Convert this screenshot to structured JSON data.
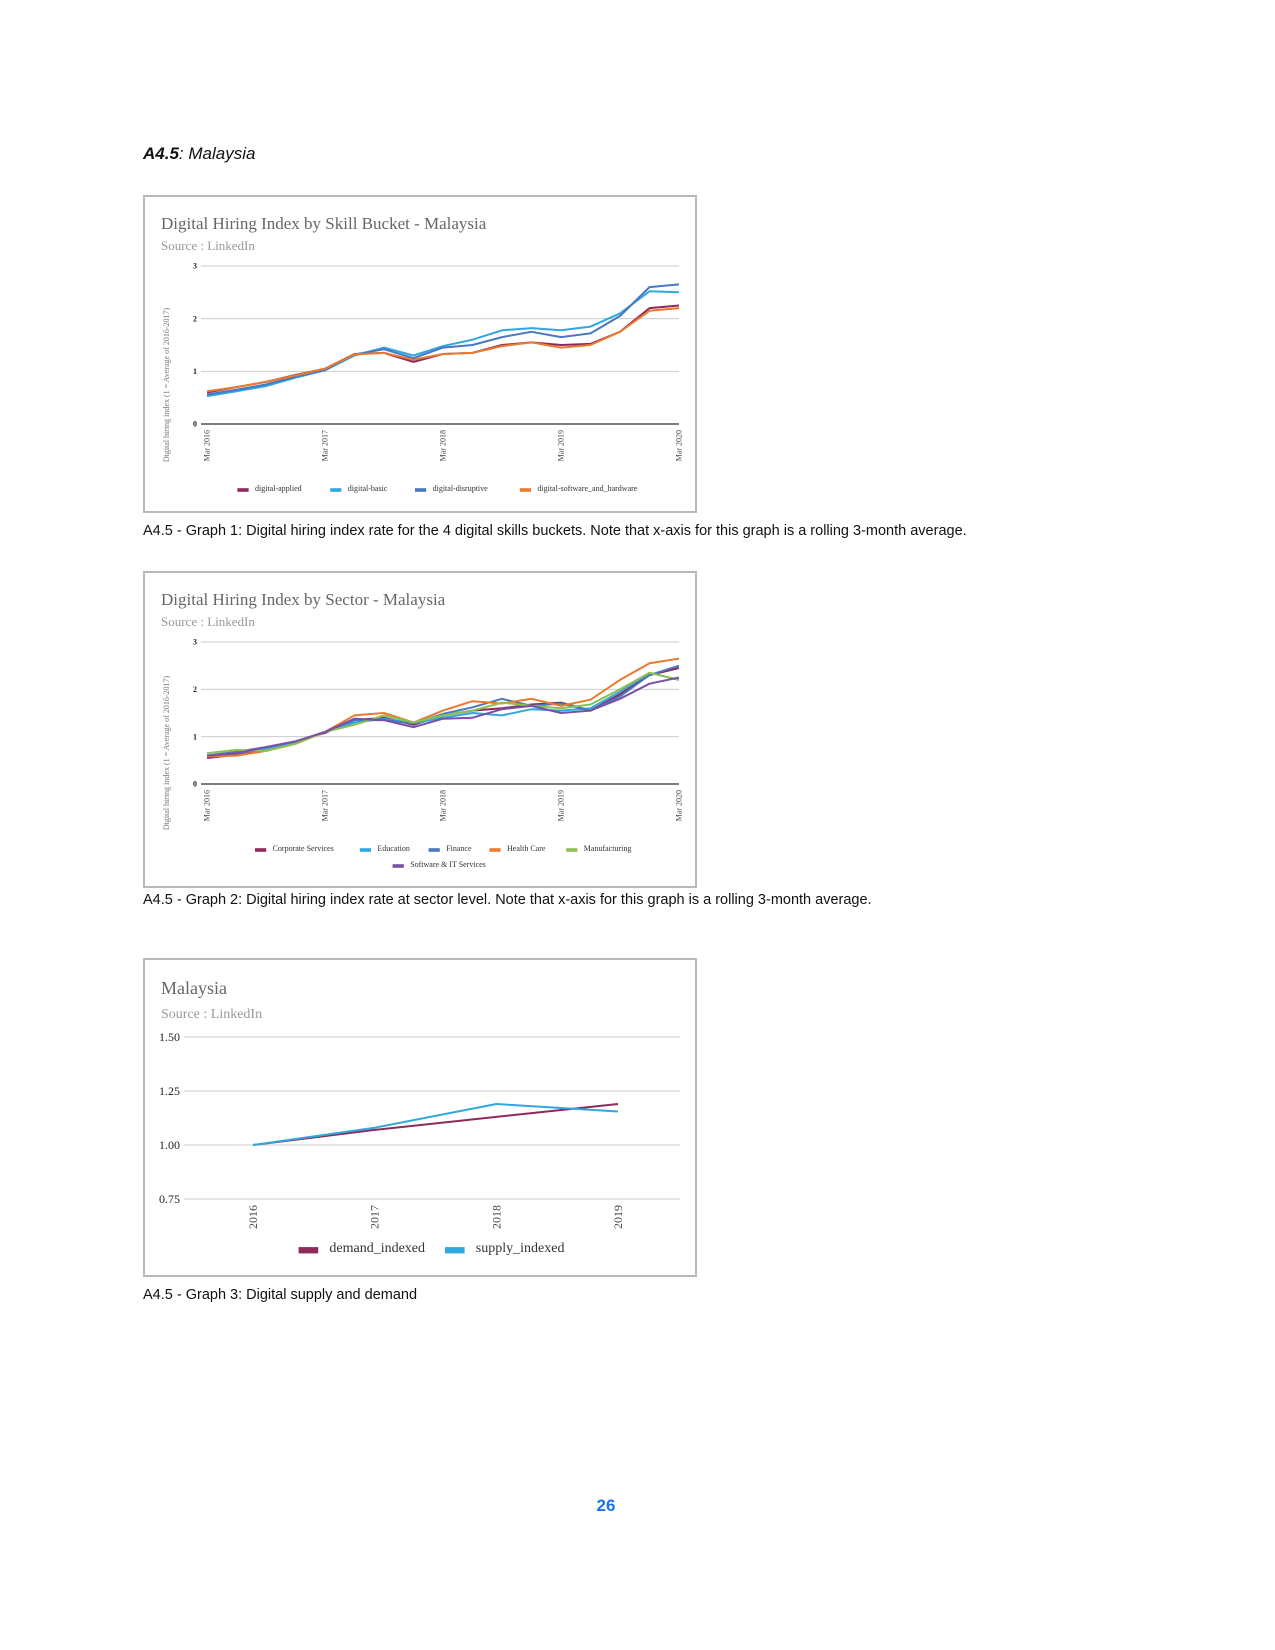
{
  "section": {
    "label": "A4.5",
    "title": ": Malaysia"
  },
  "page_number": "26",
  "captions": [
    "A4.5 - Graph 1: Digital hiring index rate for the 4 digital skills buckets. Note that x-axis for this graph is a rolling 3-month average.",
    "A4.5 - Graph 2: Digital hiring index rate at sector level. Note that x-axis for this graph is a rolling 3-month average.",
    "A4.5 - Graph 3: Digital supply and demand"
  ],
  "chart_data": [
    {
      "type": "line",
      "title": "Digital Hiring Index by Skill Bucket - Malaysia",
      "subtitle": "Source : LinkedIn",
      "ylabel": "Digital hiring index (1 = Average of 2016-2017)",
      "xlabel": "",
      "ylim": [
        0,
        3
      ],
      "yticks": [
        "0",
        "1",
        "2",
        "3"
      ],
      "xtick_labels": [
        "Mar 2016",
        "Mar 2017",
        "Mar 2018",
        "Mar 2019",
        "Mar 2020"
      ],
      "x": [
        "Mar 2016",
        "Jun 2016",
        "Sep 2016",
        "Dec 2016",
        "Mar 2017",
        "Jun 2017",
        "Sep 2017",
        "Dec 2017",
        "Mar 2018",
        "Jun 2018",
        "Sep 2018",
        "Dec 2018",
        "Mar 2019",
        "Jun 2019",
        "Sep 2019",
        "Dec 2019",
        "Mar 2020"
      ],
      "grid": true,
      "legend": "bottom",
      "series": [
        {
          "name": "digital-applied",
          "color": "#8e2a5a",
          "values": [
            0.6,
            0.7,
            0.8,
            0.93,
            1.05,
            1.33,
            1.35,
            1.18,
            1.33,
            1.35,
            1.5,
            1.55,
            1.5,
            1.52,
            1.75,
            2.2,
            2.25
          ]
        },
        {
          "name": "digital-basic",
          "color": "#2ea8df",
          "values": [
            0.53,
            0.62,
            0.72,
            0.88,
            1.02,
            1.3,
            1.45,
            1.3,
            1.48,
            1.6,
            1.78,
            1.82,
            1.78,
            1.85,
            2.1,
            2.52,
            2.5
          ]
        },
        {
          "name": "digital-disruptive",
          "color": "#4a78c0",
          "values": [
            0.56,
            0.65,
            0.75,
            0.9,
            1.03,
            1.32,
            1.42,
            1.25,
            1.45,
            1.5,
            1.65,
            1.75,
            1.65,
            1.72,
            2.05,
            2.6,
            2.65
          ]
        },
        {
          "name": "digital-software_and_hardware",
          "color": "#ea7a2e",
          "values": [
            0.62,
            0.7,
            0.8,
            0.92,
            1.05,
            1.32,
            1.35,
            1.22,
            1.33,
            1.35,
            1.48,
            1.55,
            1.45,
            1.5,
            1.75,
            2.15,
            2.2
          ]
        }
      ]
    },
    {
      "type": "line",
      "title": "Digital Hiring Index by Sector - Malaysia",
      "subtitle": "Source : LinkedIn",
      "ylabel": "Digital hiring index (1 = Average of 2016-2017)",
      "xlabel": "",
      "ylim": [
        0,
        3
      ],
      "yticks": [
        "0",
        "1",
        "2",
        "3"
      ],
      "xtick_labels": [
        "Mar 2016",
        "Mar 2017",
        "Mar 2018",
        "Mar 2019",
        "Mar 2020"
      ],
      "x": [
        "Mar 2016",
        "Jun 2016",
        "Sep 2016",
        "Dec 2016",
        "Mar 2017",
        "Jun 2017",
        "Sep 2017",
        "Dec 2017",
        "Mar 2018",
        "Jun 2018",
        "Sep 2018",
        "Dec 2018",
        "Mar 2019",
        "Jun 2019",
        "Sep 2019",
        "Dec 2019",
        "Mar 2020"
      ],
      "grid": true,
      "legend": "bottom",
      "series": [
        {
          "name": "Corporate Services",
          "color": "#8e2a5a",
          "values": [
            0.55,
            0.62,
            0.75,
            0.9,
            1.08,
            1.35,
            1.4,
            1.25,
            1.45,
            1.55,
            1.6,
            1.68,
            1.72,
            1.55,
            1.9,
            2.3,
            2.45
          ]
        },
        {
          "name": "Education",
          "color": "#2ea8df",
          "values": [
            0.6,
            0.65,
            0.75,
            0.88,
            1.1,
            1.3,
            1.38,
            1.28,
            1.4,
            1.5,
            1.45,
            1.58,
            1.55,
            1.6,
            1.95,
            2.35,
            2.2
          ]
        },
        {
          "name": "Finance",
          "color": "#4a78c0",
          "values": [
            0.6,
            0.68,
            0.78,
            0.9,
            1.1,
            1.35,
            1.35,
            1.28,
            1.48,
            1.62,
            1.8,
            1.65,
            1.7,
            1.55,
            1.85,
            2.3,
            2.5
          ]
        },
        {
          "name": "Health Care",
          "color": "#ea7a2e",
          "values": [
            0.58,
            0.6,
            0.7,
            0.85,
            1.1,
            1.45,
            1.5,
            1.3,
            1.55,
            1.75,
            1.7,
            1.8,
            1.65,
            1.78,
            2.2,
            2.55,
            2.65
          ]
        },
        {
          "name": "Manufacturing",
          "color": "#8cc152",
          "values": [
            0.65,
            0.72,
            0.7,
            0.85,
            1.1,
            1.25,
            1.45,
            1.3,
            1.45,
            1.55,
            1.72,
            1.65,
            1.6,
            1.68,
            2.0,
            2.35,
            2.2
          ]
        },
        {
          "name": "Software & IT Services",
          "color": "#7a4fa8",
          "values": [
            0.6,
            0.65,
            0.78,
            0.9,
            1.1,
            1.38,
            1.35,
            1.2,
            1.38,
            1.4,
            1.58,
            1.65,
            1.5,
            1.55,
            1.8,
            2.12,
            2.25
          ]
        }
      ]
    },
    {
      "type": "line",
      "title": "Malaysia",
      "subtitle": "Source : LinkedIn",
      "ylabel": "",
      "xlabel": "",
      "ylim": [
        0.75,
        1.5
      ],
      "yticks": [
        "0.75",
        "1.00",
        "1.25",
        "1.50"
      ],
      "xtick_labels": [
        "2016",
        "2017",
        "2018",
        "2019"
      ],
      "x": [
        "2016",
        "2017",
        "2018",
        "2019"
      ],
      "grid": true,
      "legend": "bottom",
      "series": [
        {
          "name": "demand_indexed",
          "color": "#8e2a5a",
          "values": [
            1.0,
            1.07,
            1.13,
            1.19
          ]
        },
        {
          "name": "supply_indexed",
          "color": "#2ea8df",
          "values": [
            1.0,
            1.08,
            1.19,
            1.155
          ]
        }
      ]
    }
  ]
}
